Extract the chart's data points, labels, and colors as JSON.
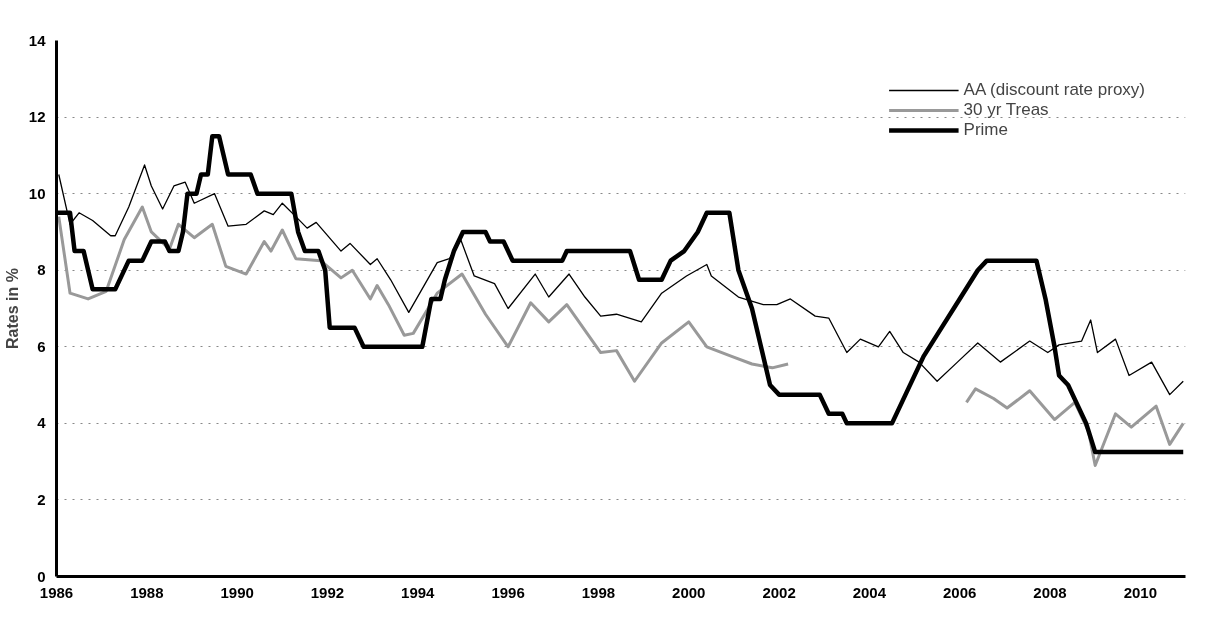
{
  "chart_data": {
    "type": "line",
    "ylabel": "Rates in %",
    "xlim": [
      1986,
      2011
    ],
    "xticks": [
      1986,
      1988,
      1990,
      1992,
      1994,
      1996,
      1998,
      2000,
      2002,
      2004,
      2006,
      2008,
      2010
    ],
    "ylim": [
      0,
      14
    ],
    "yticks": [
      0,
      2,
      4,
      6,
      8,
      10,
      12,
      14
    ],
    "grid": "y",
    "legend": "top right",
    "line_style": "solid",
    "series": [
      {
        "name": "AA (discount rate proxy)",
        "color": "#000000",
        "x": [
          1986.05,
          1986.3,
          1986.5,
          1986.8,
          1987.2,
          1987.3,
          1987.6,
          1987.95,
          1988.1,
          1988.35,
          1988.6,
          1988.85,
          1989.05,
          1989.5,
          1989.8,
          1990.2,
          1990.6,
          1990.8,
          1991.0,
          1991.3,
          1991.55,
          1991.75,
          1992.3,
          1992.5,
          1992.95,
          1993.1,
          1993.4,
          1993.8,
          1994.43,
          1994.7,
          1994.95,
          1995.25,
          1995.7,
          1996.0,
          1996.6,
          1996.9,
          1997.35,
          1997.7,
          1998.05,
          1998.4,
          1998.95,
          1999.4,
          1999.95,
          2000.4,
          2000.5,
          2001.1,
          2001.65,
          2001.95,
          2002.25,
          2002.8,
          2003.1,
          2003.5,
          2003.8,
          2004.2,
          2004.45,
          2004.75,
          2005.1,
          2005.5,
          2005.95,
          2006.4,
          2006.9,
          2007.55,
          2007.95,
          2008.2,
          2008.7,
          2008.9,
          2009.05,
          2009.45,
          2009.75,
          2010.25,
          2010.65,
          2010.95
        ],
        "values": [
          10.5,
          9.2,
          9.5,
          9.3,
          8.9,
          8.9,
          9.65,
          10.75,
          10.2,
          9.6,
          10.2,
          10.3,
          9.75,
          10.0,
          9.15,
          9.2,
          9.55,
          9.45,
          9.75,
          9.4,
          9.1,
          9.25,
          8.5,
          8.7,
          8.15,
          8.3,
          7.75,
          6.9,
          8.2,
          8.3,
          8.8,
          7.85,
          7.65,
          7.0,
          7.9,
          7.3,
          7.9,
          7.3,
          6.8,
          6.85,
          6.65,
          7.4,
          7.85,
          8.15,
          7.85,
          7.3,
          7.1,
          7.1,
          7.25,
          6.8,
          6.75,
          5.85,
          6.2,
          6.0,
          6.4,
          5.85,
          5.6,
          5.1,
          5.6,
          6.1,
          5.6,
          6.15,
          5.85,
          6.05,
          6.15,
          6.7,
          5.85,
          6.2,
          5.25,
          5.6,
          4.75,
          5.1
        ]
      },
      {
        "name": "30 yr Treas",
        "color": "#999999",
        "x": [
          1986.05,
          1986.3,
          1986.7,
          1987.1,
          1987.5,
          1987.9,
          1988.1,
          1988.5,
          1988.7,
          1989.05,
          1989.45,
          1989.75,
          1990.2,
          1990.6,
          1990.75,
          1991.0,
          1991.3,
          1991.85,
          1992.3,
          1992.55,
          1992.95,
          1993.1,
          1993.35,
          1993.7,
          1993.9,
          1994.43,
          1994.98,
          1995.5,
          1996.0,
          1996.5,
          1996.9,
          1997.3,
          1998.05,
          1998.4,
          1998.8,
          1999.4,
          2000.0,
          2000.4,
          2000.95,
          2001.4,
          2001.85,
          2002.2,
          2004.0,
          2006.15,
          2006.35,
          2006.75,
          2007.05,
          2007.55,
          2008.1,
          2008.55,
          2008.85,
          2009.0,
          2009.45,
          2009.8,
          2010.35,
          2010.65,
          2010.95
        ],
        "values": [
          9.4,
          7.4,
          7.25,
          7.45,
          8.8,
          9.65,
          9.0,
          8.55,
          9.2,
          8.85,
          9.2,
          8.1,
          7.9,
          8.75,
          8.5,
          9.05,
          8.3,
          8.25,
          7.8,
          8.0,
          7.25,
          7.6,
          7.1,
          6.3,
          6.35,
          7.4,
          7.9,
          6.85,
          6.0,
          7.15,
          6.65,
          7.1,
          5.85,
          5.9,
          5.1,
          6.1,
          6.65,
          6.0,
          5.75,
          5.55,
          5.45,
          5.55,
          null,
          4.55,
          4.9,
          4.65,
          4.4,
          4.85,
          4.1,
          4.55,
          3.8,
          2.9,
          4.25,
          3.9,
          4.45,
          3.45,
          4.0
        ]
      },
      {
        "name": "Prime",
        "color": "#000000",
        "x": [
          1986.0,
          1986.3,
          1986.4,
          1986.6,
          1986.8,
          1987.3,
          1987.6,
          1987.9,
          1988.1,
          1988.4,
          1988.5,
          1988.7,
          1988.8,
          1988.9,
          1989.1,
          1989.2,
          1989.35,
          1989.45,
          1989.6,
          1989.8,
          1990.3,
          1990.45,
          1991.2,
          1991.35,
          1991.5,
          1991.8,
          1991.95,
          1992.05,
          1992.6,
          1992.8,
          1994.1,
          1994.3,
          1994.5,
          1994.6,
          1994.8,
          1995.0,
          1995.5,
          1995.6,
          1995.9,
          1996.1,
          1997.2,
          1997.3,
          1998.7,
          1998.9,
          1999.4,
          1999.6,
          1999.9,
          2000.2,
          2000.4,
          2000.9,
          2001.1,
          2001.4,
          2001.8,
          2002.0,
          2002.9,
          2003.1,
          2003.4,
          2003.5,
          2004.5,
          2004.8,
          2005.2,
          2005.6,
          2006.0,
          2006.4,
          2006.6,
          2007.7,
          2007.9,
          2008.1,
          2008.2,
          2008.4,
          2008.8,
          2009.0,
          2010.95
        ],
        "values": [
          9.5,
          9.5,
          8.5,
          8.5,
          7.5,
          7.5,
          8.25,
          8.25,
          8.75,
          8.75,
          8.5,
          8.5,
          9.0,
          10.0,
          10.0,
          10.5,
          10.5,
          11.5,
          11.5,
          10.5,
          10.5,
          10.0,
          10.0,
          9.0,
          8.5,
          8.5,
          8.0,
          6.5,
          6.5,
          6.0,
          6.0,
          7.25,
          7.25,
          7.75,
          8.5,
          9.0,
          9.0,
          8.75,
          8.75,
          8.25,
          8.25,
          8.5,
          8.5,
          7.75,
          7.75,
          8.25,
          8.5,
          9.0,
          9.5,
          9.5,
          8.0,
          7.0,
          5.0,
          4.75,
          4.75,
          4.25,
          4.25,
          4.0,
          4.0,
          4.75,
          5.75,
          6.5,
          7.25,
          8.0,
          8.25,
          8.25,
          7.25,
          6.0,
          5.25,
          5.0,
          4.0,
          3.25,
          3.25
        ]
      }
    ]
  }
}
